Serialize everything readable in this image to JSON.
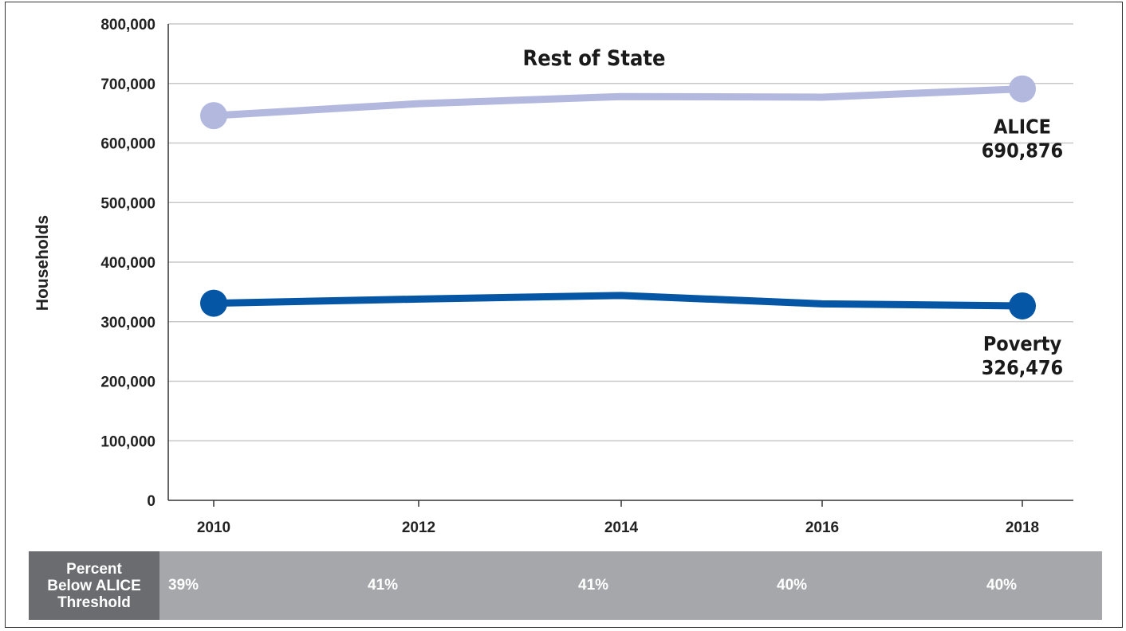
{
  "chart_data": {
    "type": "line",
    "title": "Rest of State",
    "ylabel": "Households",
    "xlabel": "",
    "x": [
      "2010",
      "2012",
      "2014",
      "2016",
      "2018"
    ],
    "ylim": [
      0,
      800000
    ],
    "yticks": [
      "0",
      "100,000",
      "200,000",
      "300,000",
      "400,000",
      "500,000",
      "600,000",
      "700,000",
      "800,000"
    ],
    "grid": true,
    "series": [
      {
        "name": "ALICE",
        "values": [
          646000,
          666000,
          678000,
          677000,
          690876
        ],
        "color": "#b3b8df",
        "end_label": "ALICE",
        "end_value": "690,876"
      },
      {
        "name": "Poverty",
        "values": [
          331000,
          338000,
          344000,
          330000,
          326476
        ],
        "color": "#0656a6",
        "end_label": "Poverty",
        "end_value": "326,476"
      }
    ]
  },
  "percent_table": {
    "header": "Percent\nBelow ALICE\nThreshold",
    "values": [
      "39%",
      "41%",
      "41%",
      "40%",
      "40%"
    ]
  }
}
